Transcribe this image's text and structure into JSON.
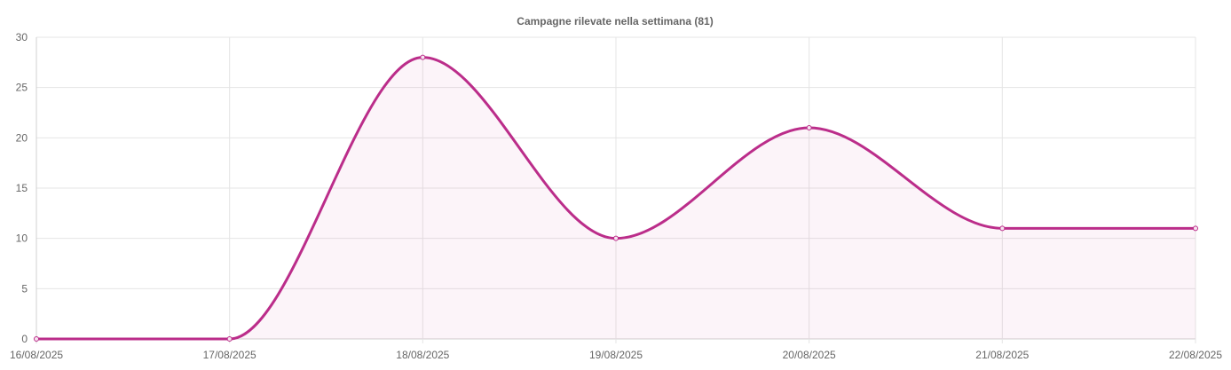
{
  "chart_data": {
    "type": "line",
    "title": "Campagne rilevate nella settimana (81)",
    "xlabel": "",
    "ylabel": "",
    "categories": [
      "16/08/2025",
      "17/08/2025",
      "18/08/2025",
      "19/08/2025",
      "20/08/2025",
      "21/08/2025",
      "22/08/2025"
    ],
    "series": [
      {
        "values": [
          0,
          0,
          28,
          10,
          21,
          11,
          11
        ]
      }
    ],
    "ylim": [
      0,
      30
    ],
    "yticks": [
      0,
      5,
      10,
      15,
      20,
      25,
      30
    ],
    "grid": true,
    "fill": true,
    "smooth": true,
    "colors": {
      "line": "#bb2d8a",
      "fill": "#bb2d8a",
      "grid": "#e5e5e5",
      "text": "#666666"
    }
  }
}
